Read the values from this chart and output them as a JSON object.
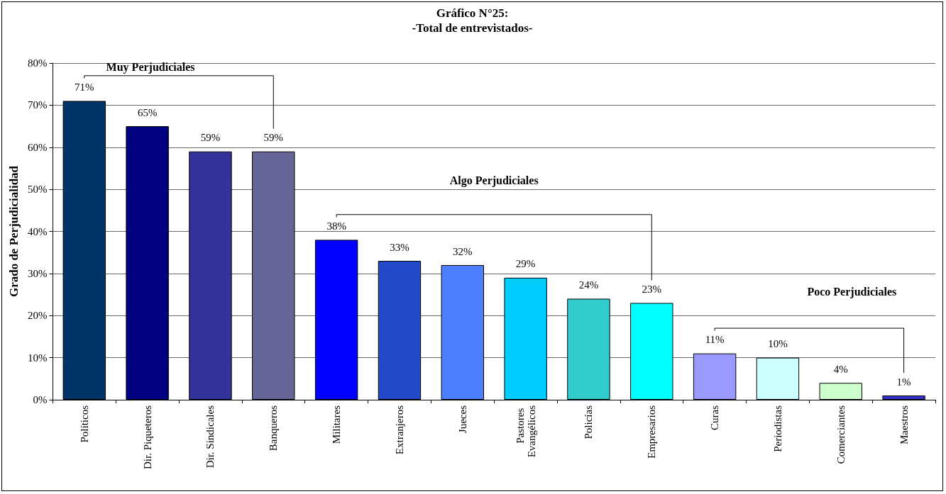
{
  "chart_data": {
    "type": "bar",
    "title": "Gráfico N°25:",
    "subtitle": "-Total de entrevistados-",
    "ylabel": "Grado de Perjudicialidad",
    "categories": [
      "Políticos",
      "Dir. Piqueteros",
      "Dir. Sindicales",
      "Banqueros",
      "Militares",
      "Extranjeros",
      "Jueces",
      "Pastores Evangélicos",
      "Policías",
      "Empresarios",
      "Curas",
      "Periodistas",
      "Comerciantes",
      "Maestros"
    ],
    "values": [
      71,
      65,
      59,
      59,
      38,
      33,
      32,
      29,
      24,
      23,
      11,
      10,
      4,
      1
    ],
    "value_labels": [
      "71%",
      "65%",
      "59%",
      "59%",
      "38%",
      "33%",
      "32%",
      "29%",
      "24%",
      "23%",
      "11%",
      "10%",
      "4%",
      "1%"
    ],
    "colors": [
      "#003366",
      "#000080",
      "#333399",
      "#666699",
      "#0000ff",
      "#2449c8",
      "#4d7fff",
      "#00ccff",
      "#33cccc",
      "#00ffff",
      "#9999ff",
      "#ccffff",
      "#ccffcc",
      "#3333cc"
    ],
    "ylim": [
      0,
      80
    ],
    "yticks": [
      {
        "value": 0,
        "label": "0%"
      },
      {
        "value": 10,
        "label": "10%"
      },
      {
        "value": 20,
        "label": "20%"
      },
      {
        "value": 30,
        "label": "30%"
      },
      {
        "value": 40,
        "label": "40%"
      },
      {
        "value": 50,
        "label": "50%"
      },
      {
        "value": 60,
        "label": "60%"
      },
      {
        "value": 70,
        "label": "70%"
      },
      {
        "value": 80,
        "label": "80%"
      }
    ],
    "grid": "y",
    "annotations": [
      "Muy Perjudiciales",
      "Algo Perjudiciales",
      "Poco Perjudiciales"
    ]
  }
}
